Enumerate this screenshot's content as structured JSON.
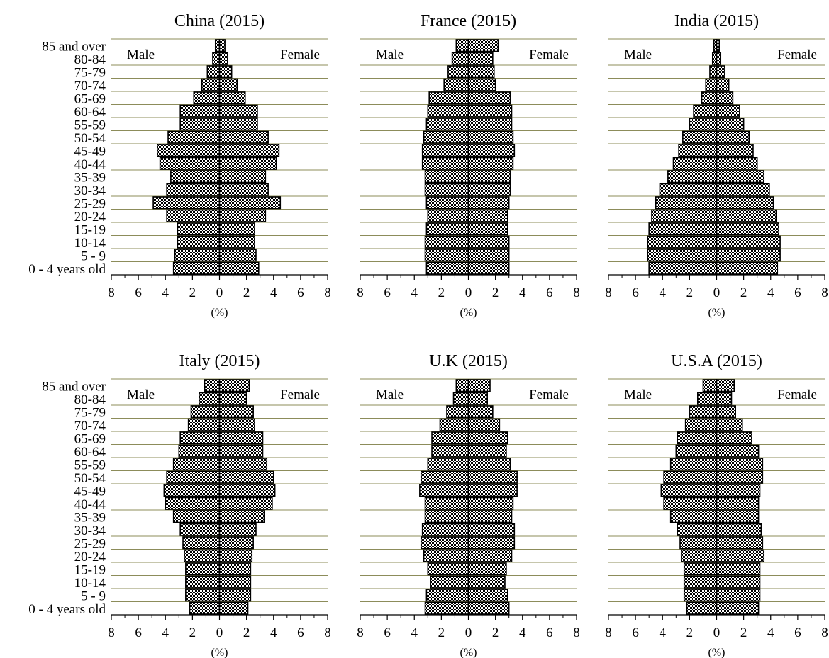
{
  "colors": {
    "background": "#ffffff",
    "gridline": "#8c8c5a",
    "bar_fill": "#ffffff",
    "bar_edge": "#000000",
    "text": "#000000"
  },
  "age_groups": [
    "0 - 4 years old",
    "5 - 9",
    "10-14",
    "15-19",
    "20-24",
    "25-29",
    "30-34",
    "35-39",
    "40-44",
    "45-49",
    "50-54",
    "55-59",
    "60-64",
    "65-69",
    "70-74",
    "75-79",
    "80-84",
    "85 and over"
  ],
  "chart_data": [
    {
      "type": "bar",
      "orientation": "horizontal-pyramid",
      "title": "China (2015)",
      "xlabel": "(%)",
      "x_ticks": [
        "8",
        "6",
        "4",
        "2",
        "0",
        "2",
        "4",
        "6",
        "8"
      ],
      "xlim": [
        -8,
        8
      ],
      "side_labels": {
        "left": "Male",
        "right": "Female"
      },
      "categories": [
        "0 - 4 years old",
        "5 - 9",
        "10-14",
        "15-19",
        "20-24",
        "25-29",
        "30-34",
        "35-39",
        "40-44",
        "45-49",
        "50-54",
        "55-59",
        "60-64",
        "65-69",
        "70-74",
        "75-79",
        "80-84",
        "85 and over"
      ],
      "series": [
        {
          "name": "Male",
          "values": [
            3.4,
            3.3,
            3.1,
            3.1,
            3.9,
            4.9,
            3.9,
            3.6,
            4.4,
            4.6,
            3.8,
            2.9,
            2.9,
            1.9,
            1.3,
            0.9,
            0.5,
            0.3
          ]
        },
        {
          "name": "Female",
          "values": [
            2.9,
            2.7,
            2.6,
            2.6,
            3.4,
            4.5,
            3.6,
            3.4,
            4.2,
            4.4,
            3.6,
            2.8,
            2.8,
            1.9,
            1.3,
            0.9,
            0.6,
            0.4
          ]
        }
      ]
    },
    {
      "type": "bar",
      "orientation": "horizontal-pyramid",
      "title": "France (2015)",
      "xlabel": "(%)",
      "x_ticks": [
        "8",
        "6",
        "4",
        "2",
        "0",
        "2",
        "4",
        "6",
        "8"
      ],
      "xlim": [
        -8,
        8
      ],
      "side_labels": {
        "left": "Male",
        "right": "Female"
      },
      "categories": [
        "0 - 4 years old",
        "5 - 9",
        "10-14",
        "15-19",
        "20-24",
        "25-29",
        "30-34",
        "35-39",
        "40-44",
        "45-49",
        "50-54",
        "55-59",
        "60-64",
        "65-69",
        "70-74",
        "75-79",
        "80-84",
        "85 and over"
      ],
      "series": [
        {
          "name": "Male",
          "values": [
            3.1,
            3.2,
            3.2,
            3.1,
            3.0,
            3.1,
            3.2,
            3.2,
            3.4,
            3.4,
            3.3,
            3.1,
            3.0,
            2.9,
            1.8,
            1.5,
            1.2,
            0.9
          ]
        },
        {
          "name": "Female",
          "values": [
            3.0,
            3.0,
            3.0,
            2.9,
            2.9,
            3.0,
            3.1,
            3.1,
            3.3,
            3.4,
            3.3,
            3.2,
            3.2,
            3.1,
            2.0,
            1.9,
            1.8,
            2.2
          ]
        }
      ]
    },
    {
      "type": "bar",
      "orientation": "horizontal-pyramid",
      "title": "India (2015)",
      "xlabel": "(%)",
      "x_ticks": [
        "8",
        "6",
        "4",
        "2",
        "0",
        "2",
        "4",
        "6",
        "8"
      ],
      "xlim": [
        -8,
        8
      ],
      "side_labels": {
        "left": "Male",
        "right": "Female"
      },
      "categories": [
        "0 - 4 years old",
        "5 - 9",
        "10-14",
        "15-19",
        "20-24",
        "25-29",
        "30-34",
        "35-39",
        "40-44",
        "45-49",
        "50-54",
        "55-59",
        "60-64",
        "65-69",
        "70-74",
        "75-79",
        "80-84",
        "85 and over"
      ],
      "series": [
        {
          "name": "Male",
          "values": [
            5.0,
            5.1,
            5.1,
            5.0,
            4.8,
            4.5,
            4.2,
            3.6,
            3.2,
            2.8,
            2.5,
            2.0,
            1.7,
            1.1,
            0.8,
            0.5,
            0.3,
            0.2
          ]
        },
        {
          "name": "Female",
          "values": [
            4.5,
            4.7,
            4.7,
            4.6,
            4.4,
            4.2,
            3.9,
            3.5,
            3.0,
            2.7,
            2.4,
            2.0,
            1.7,
            1.2,
            0.9,
            0.6,
            0.3,
            0.2
          ]
        }
      ]
    },
    {
      "type": "bar",
      "orientation": "horizontal-pyramid",
      "title": "Italy (2015)",
      "xlabel": "(%)",
      "x_ticks": [
        "8",
        "6",
        "4",
        "2",
        "0",
        "2",
        "4",
        "6",
        "8"
      ],
      "xlim": [
        -8,
        8
      ],
      "side_labels": {
        "left": "Male",
        "right": "Female"
      },
      "categories": [
        "0 - 4 years old",
        "5 - 9",
        "10-14",
        "15-19",
        "20-24",
        "25-29",
        "30-34",
        "35-39",
        "40-44",
        "45-49",
        "50-54",
        "55-59",
        "60-64",
        "65-69",
        "70-74",
        "75-79",
        "80-84",
        "85 and over"
      ],
      "series": [
        {
          "name": "Male",
          "values": [
            2.2,
            2.5,
            2.5,
            2.5,
            2.6,
            2.7,
            2.9,
            3.4,
            4.0,
            4.1,
            3.9,
            3.4,
            3.0,
            2.9,
            2.3,
            2.1,
            1.5,
            1.1
          ]
        },
        {
          "name": "Female",
          "values": [
            2.1,
            2.3,
            2.3,
            2.3,
            2.4,
            2.5,
            2.7,
            3.3,
            3.9,
            4.1,
            4.0,
            3.5,
            3.2,
            3.2,
            2.6,
            2.5,
            2.0,
            2.2
          ]
        }
      ]
    },
    {
      "type": "bar",
      "orientation": "horizontal-pyramid",
      "title": "U.K (2015)",
      "xlabel": "(%)",
      "x_ticks": [
        "8",
        "6",
        "4",
        "2",
        "0",
        "2",
        "4",
        "6",
        "8"
      ],
      "xlim": [
        -8,
        8
      ],
      "side_labels": {
        "left": "Male",
        "right": "Female"
      },
      "categories": [
        "0 - 4 years old",
        "5 - 9",
        "10-14",
        "15-19",
        "20-24",
        "25-29",
        "30-34",
        "35-39",
        "40-44",
        "45-49",
        "50-54",
        "55-59",
        "60-64",
        "65-69",
        "70-74",
        "75-79",
        "80-84",
        "85 and over"
      ],
      "series": [
        {
          "name": "Male",
          "values": [
            3.2,
            3.1,
            2.8,
            3.0,
            3.3,
            3.5,
            3.4,
            3.2,
            3.2,
            3.6,
            3.5,
            3.0,
            2.7,
            2.7,
            2.1,
            1.6,
            1.1,
            0.9
          ]
        },
        {
          "name": "Female",
          "values": [
            3.0,
            2.9,
            2.7,
            2.8,
            3.2,
            3.4,
            3.4,
            3.2,
            3.3,
            3.6,
            3.6,
            3.1,
            2.8,
            2.9,
            2.3,
            1.8,
            1.4,
            1.6
          ]
        }
      ]
    },
    {
      "type": "bar",
      "orientation": "horizontal-pyramid",
      "title": "U.S.A (2015)",
      "xlabel": "(%)",
      "x_ticks": [
        "8",
        "6",
        "4",
        "2",
        "0",
        "2",
        "4",
        "6",
        "8"
      ],
      "xlim": [
        -8,
        8
      ],
      "side_labels": {
        "left": "Male",
        "right": "Female"
      },
      "categories": [
        "0 - 4 years old",
        "5 - 9",
        "10-14",
        "15-19",
        "20-24",
        "25-29",
        "30-34",
        "35-39",
        "40-44",
        "45-49",
        "50-54",
        "55-59",
        "60-64",
        "65-69",
        "70-74",
        "75-79",
        "80-84",
        "85 and over"
      ],
      "series": [
        {
          "name": "Male",
          "values": [
            2.2,
            2.4,
            2.4,
            2.4,
            2.6,
            2.7,
            2.9,
            3.4,
            3.9,
            4.1,
            3.9,
            3.4,
            3.0,
            2.9,
            2.3,
            2.0,
            1.4,
            1.0
          ]
        },
        {
          "name": "Female",
          "values": [
            3.1,
            3.2,
            3.2,
            3.2,
            3.5,
            3.4,
            3.3,
            3.1,
            3.1,
            3.2,
            3.4,
            3.4,
            3.1,
            2.6,
            1.9,
            1.4,
            1.1,
            1.3
          ]
        }
      ]
    }
  ]
}
